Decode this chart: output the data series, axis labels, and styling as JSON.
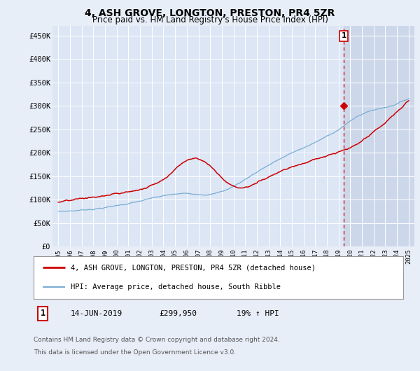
{
  "title": "4, ASH GROVE, LONGTON, PRESTON, PR4 5ZR",
  "subtitle": "Price paid vs. HM Land Registry's House Price Index (HPI)",
  "legend_line1": "4, ASH GROVE, LONGTON, PRESTON, PR4 5ZR (detached house)",
  "legend_line2": "HPI: Average price, detached house, South Ribble",
  "annotation_label": "1",
  "annotation_date": "14-JUN-2019",
  "annotation_price": "£299,950",
  "annotation_hpi": "19% ↑ HPI",
  "footer1": "Contains HM Land Registry data © Crown copyright and database right 2024.",
  "footer2": "This data is licensed under the Open Government Licence v3.0.",
  "sale_date_x": 2019.45,
  "sale_price_y": 299950,
  "vline_x": 2019.45,
  "ylim_min": 0,
  "ylim_max": 470000,
  "xlim_min": 1994.5,
  "xlim_max": 2025.5,
  "background_color": "#e8eef8",
  "plot_area_color": "#dce6f5",
  "red_line_color": "#cc0000",
  "blue_line_color": "#7aadd4",
  "vline_color": "#cc0000",
  "grid_color": "#ffffff",
  "highlight_region_color": "#ccd8ea",
  "yticks": [
    0,
    50000,
    100000,
    150000,
    200000,
    250000,
    300000,
    350000,
    400000,
    450000
  ],
  "ytick_labels": [
    "£0",
    "£50K",
    "£100K",
    "£150K",
    "£200K",
    "£250K",
    "£300K",
    "£350K",
    "£400K",
    "£450K"
  ],
  "xticks": [
    1995,
    1996,
    1997,
    1998,
    1999,
    2000,
    2001,
    2002,
    2003,
    2004,
    2005,
    2006,
    2007,
    2008,
    2009,
    2010,
    2011,
    2012,
    2013,
    2014,
    2015,
    2016,
    2017,
    2018,
    2019,
    2020,
    2021,
    2022,
    2023,
    2024,
    2025
  ]
}
